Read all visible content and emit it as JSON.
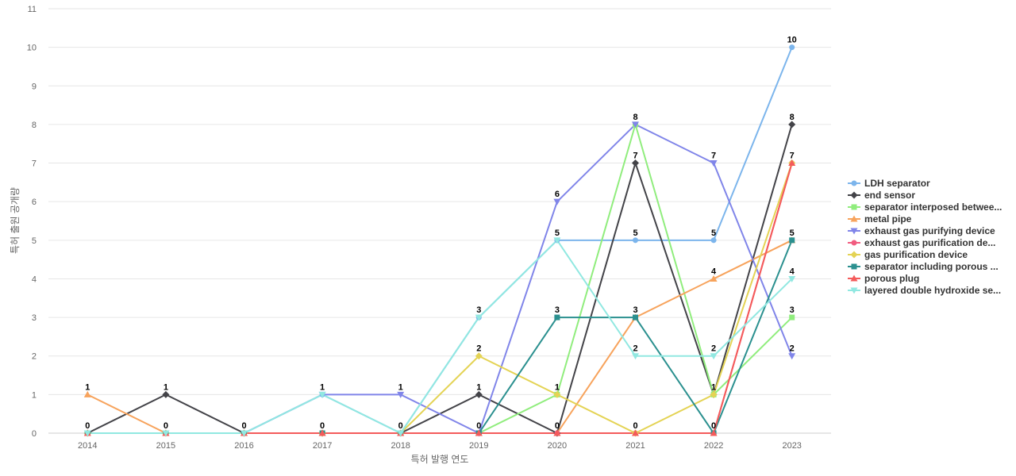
{
  "chart_data": {
    "type": "line",
    "xlabel": "특허 발행 연도",
    "ylabel": "특허 출원 공개량",
    "ylim": [
      0,
      11
    ],
    "grid": true,
    "legend_position": "right",
    "x": [
      "2014",
      "2015",
      "2016",
      "2017",
      "2018",
      "2019",
      "2020",
      "2021",
      "2022",
      "2023"
    ],
    "y_ticks": [
      0,
      1,
      2,
      3,
      4,
      5,
      6,
      7,
      8,
      9,
      10,
      11
    ],
    "series": [
      {
        "name": "LDH separator",
        "color": "#7cb5ec",
        "marker": "circle",
        "values": [
          0,
          0,
          0,
          1,
          0,
          3,
          5,
          5,
          5,
          10
        ]
      },
      {
        "name": "end sensor",
        "color": "#434348",
        "marker": "diamond",
        "values": [
          0,
          1,
          0,
          0,
          0,
          1,
          0,
          7,
          1,
          8
        ]
      },
      {
        "name": "separator interposed betwee...",
        "color": "#90ed7d",
        "marker": "square",
        "values": [
          0,
          0,
          0,
          0,
          0,
          0,
          1,
          8,
          1,
          3
        ]
      },
      {
        "name": "metal pipe",
        "color": "#f7a35c",
        "marker": "triangle",
        "values": [
          1,
          0,
          0,
          0,
          0,
          0,
          0,
          3,
          4,
          5
        ]
      },
      {
        "name": "exhaust gas purifying device",
        "color": "#8085e9",
        "marker": "triangle-down",
        "values": [
          0,
          0,
          0,
          1,
          1,
          0,
          6,
          8,
          7,
          2
        ]
      },
      {
        "name": "exhaust gas purification de...",
        "color": "#f15c80",
        "marker": "circle",
        "values": [
          0,
          0,
          0,
          0,
          0,
          0,
          0,
          0,
          0,
          7
        ]
      },
      {
        "name": "gas purification device",
        "color": "#e4d354",
        "marker": "diamond",
        "values": [
          0,
          0,
          0,
          0,
          0,
          2,
          1,
          0,
          1,
          7
        ]
      },
      {
        "name": "separator including porous ...",
        "color": "#2b908f",
        "marker": "square",
        "values": [
          0,
          0,
          0,
          0,
          0,
          0,
          3,
          3,
          0,
          5
        ]
      },
      {
        "name": "porous plug",
        "color": "#f45b5b",
        "marker": "triangle",
        "values": [
          0,
          0,
          0,
          0,
          0,
          0,
          0,
          0,
          0,
          7
        ]
      },
      {
        "name": "layered double hydroxide se...",
        "color": "#91e8e1",
        "marker": "triangle-down",
        "values": [
          0,
          0,
          0,
          1,
          0,
          3,
          5,
          2,
          2,
          4
        ]
      }
    ],
    "data_labels": [
      {
        "x": "2014",
        "values": [
          1,
          0
        ]
      },
      {
        "x": "2015",
        "values": [
          1,
          0
        ]
      },
      {
        "x": "2016",
        "values": [
          0
        ]
      },
      {
        "x": "2017",
        "values": [
          1,
          0
        ]
      },
      {
        "x": "2018",
        "values": [
          1,
          0
        ]
      },
      {
        "x": "2019",
        "values": [
          3,
          2,
          1,
          0
        ]
      },
      {
        "x": "2020",
        "values": [
          6,
          5,
          3,
          1,
          0
        ]
      },
      {
        "x": "2021",
        "values": [
          8,
          7,
          5,
          3,
          2,
          0
        ]
      },
      {
        "x": "2022",
        "values": [
          7,
          5,
          4,
          2,
          1,
          0
        ]
      },
      {
        "x": "2023",
        "values": [
          10,
          8,
          7,
          5,
          4,
          3,
          2
        ]
      }
    ]
  }
}
